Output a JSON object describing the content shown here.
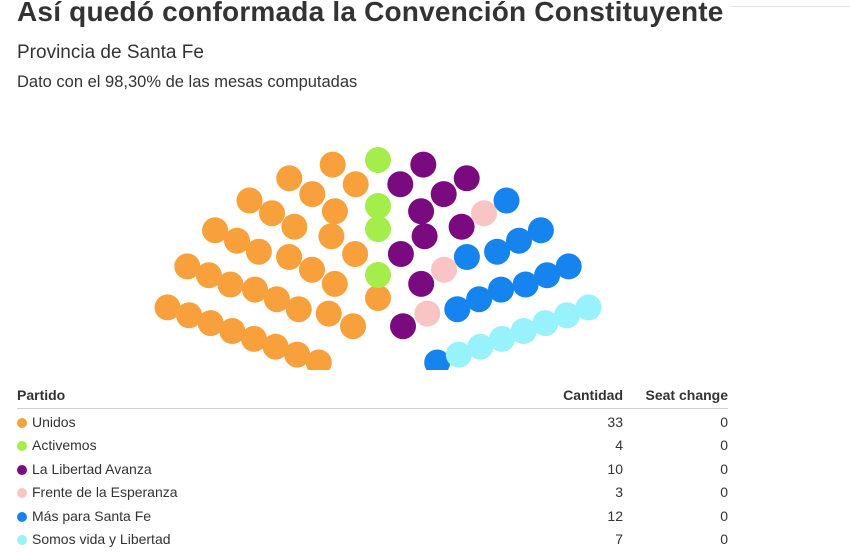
{
  "title": "Así quedó conformada la Convención Constituyente",
  "subtitle": "Provincia de Santa Fe",
  "note": "Dato con el 98,30% de las mesas computadas",
  "table": {
    "headers": {
      "party": "Partido",
      "count": "Cantidad",
      "change": "Seat change"
    },
    "rows": [
      {
        "party": "Unidos",
        "count": "33",
        "change": "0",
        "color": "#f7a03c"
      },
      {
        "party": "Activemos",
        "count": "4",
        "change": "0",
        "color": "#a4ed4a"
      },
      {
        "party": "La Libertad Avanza",
        "count": "10",
        "change": "0",
        "color": "#7a0a7f"
      },
      {
        "party": "Frente de la Esperanza",
        "count": "3",
        "change": "0",
        "color": "#f9c4c4"
      },
      {
        "party": "Más para Santa Fe",
        "count": "12",
        "change": "0",
        "color": "#1684ee"
      },
      {
        "party": "Somos vida y Libertad",
        "count": "7",
        "change": "0",
        "color": "#97f2fb"
      }
    ]
  },
  "chart_data": {
    "type": "parliament",
    "title": "Así quedó conformada la Convención Constituyente",
    "subtitle": "Provincia de Santa Fe",
    "total_seats": 69,
    "series": [
      {
        "name": "Unidos",
        "value": 33,
        "color": "#f7a03c"
      },
      {
        "name": "Activemos",
        "value": 4,
        "color": "#a4ed4a"
      },
      {
        "name": "La Libertad Avanza",
        "value": 10,
        "color": "#7a0a7f"
      },
      {
        "name": "Frente de la Esperanza",
        "value": 3,
        "color": "#f9c4c4"
      },
      {
        "name": "Más para Santa Fe",
        "value": 12,
        "color": "#1684ee"
      },
      {
        "name": "Somos vida y Libertad",
        "value": 7,
        "color": "#97f2fb"
      }
    ]
  }
}
